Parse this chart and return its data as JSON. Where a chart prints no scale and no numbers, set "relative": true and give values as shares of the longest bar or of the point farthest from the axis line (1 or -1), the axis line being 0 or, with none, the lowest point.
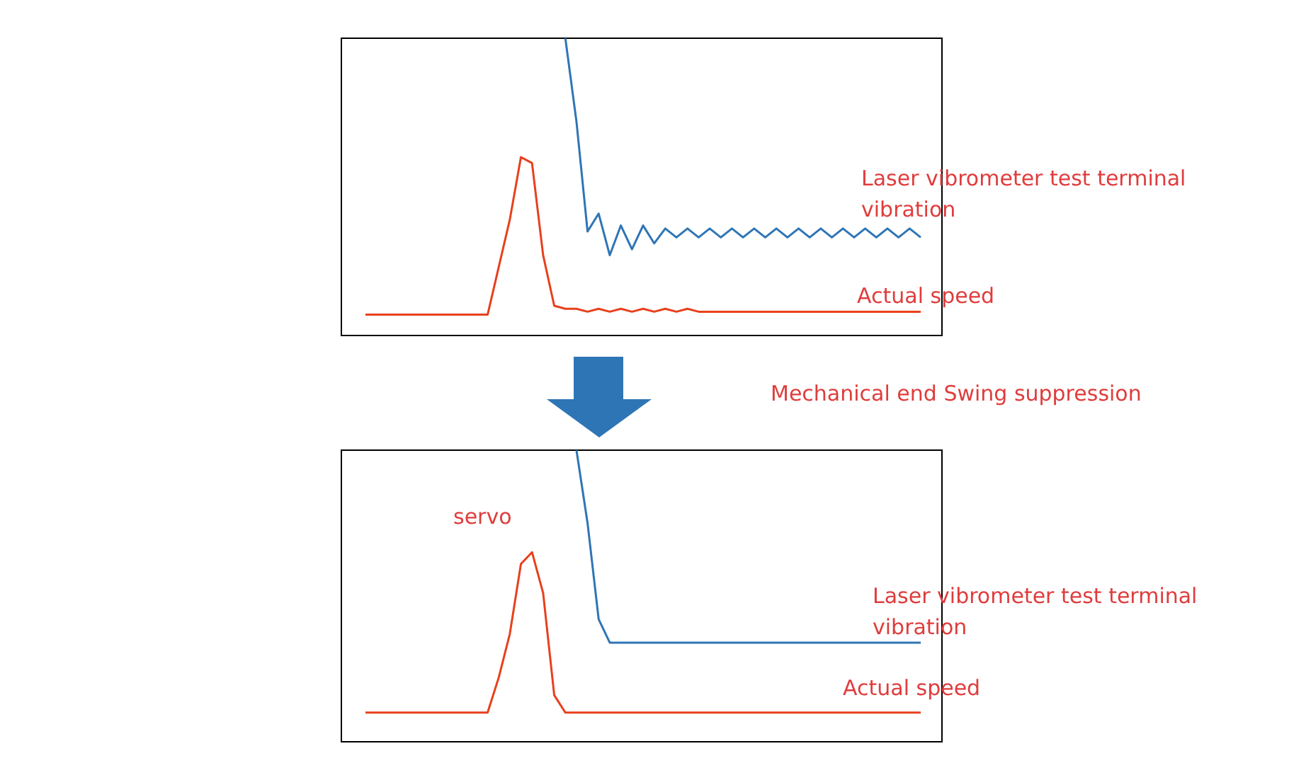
{
  "chart_data": [
    {
      "type": "line",
      "relative": true,
      "categories": [
        null,
        null,
        null,
        null,
        null,
        null,
        null,
        null,
        null,
        null,
        null,
        null,
        null,
        null,
        null,
        null,
        null,
        null,
        null,
        null,
        null,
        null,
        null,
        null,
        null,
        null,
        null,
        null,
        null,
        null,
        null,
        null,
        null,
        null,
        null,
        null,
        null,
        null,
        null,
        null,
        null,
        null,
        null,
        null,
        null,
        null,
        null,
        null,
        null,
        null,
        null
      ],
      "series": [
        {
          "name": "Laser vibrometer test terminal vibration",
          "color": "#2e75b6",
          "values": [
            null,
            null,
            null,
            null,
            null,
            null,
            null,
            null,
            null,
            null,
            null,
            null,
            null,
            null,
            null,
            null,
            null,
            null,
            1,
            0.72,
            0.35,
            0.41,
            0.27,
            0.37,
            0.29,
            0.37,
            0.31,
            0.36,
            0.33,
            0.36,
            0.33,
            0.36,
            0.33,
            0.36,
            0.33,
            0.36,
            0.33,
            0.36,
            0.33,
            0.36,
            0.33,
            0.36,
            0.33,
            0.36,
            0.33,
            0.36,
            0.33,
            0.36,
            0.33,
            0.36,
            0.33
          ]
        },
        {
          "name": "Actual speed",
          "color": "#e8401c",
          "values": [
            0.07,
            0.07,
            0.07,
            0.07,
            0.07,
            0.07,
            0.07,
            0.07,
            0.07,
            0.07,
            0.07,
            0.07,
            0.23,
            0.39,
            0.6,
            0.58,
            0.27,
            0.1,
            0.09,
            0.09,
            0.08,
            0.09,
            0.08,
            0.09,
            0.08,
            0.09,
            0.08,
            0.09,
            0.08,
            0.09,
            0.08,
            0.08,
            0.08,
            0.08,
            0.08,
            0.08,
            0.08,
            0.08,
            0.08,
            0.08,
            0.08,
            0.08,
            0.08,
            0.08,
            0.08,
            0.08,
            0.08,
            0.08,
            0.08,
            0.08,
            0.08
          ]
        }
      ],
      "annotations": [
        "Mechanical end Swing suppression"
      ]
    },
    {
      "type": "line",
      "relative": true,
      "categories": [
        null,
        null,
        null,
        null,
        null,
        null,
        null,
        null,
        null,
        null,
        null,
        null,
        null,
        null,
        null,
        null,
        null,
        null,
        null,
        null,
        null,
        null,
        null,
        null,
        null,
        null,
        null,
        null,
        null,
        null,
        null,
        null,
        null,
        null,
        null,
        null,
        null,
        null,
        null,
        null,
        null,
        null,
        null,
        null,
        null,
        null,
        null,
        null,
        null,
        null,
        null
      ],
      "series": [
        {
          "name": "Laser vibrometer test terminal vibration",
          "color": "#2e75b6",
          "values": [
            null,
            null,
            null,
            null,
            null,
            null,
            null,
            null,
            null,
            null,
            null,
            null,
            null,
            null,
            null,
            null,
            null,
            null,
            null,
            1,
            0.75,
            0.42,
            0.34,
            0.34,
            0.34,
            0.34,
            0.34,
            0.34,
            0.34,
            0.34,
            0.34,
            0.34,
            0.34,
            0.34,
            0.34,
            0.34,
            0.34,
            0.34,
            0.34,
            0.34,
            0.34,
            0.34,
            0.34,
            0.34,
            0.34,
            0.34,
            0.34,
            0.34,
            0.34,
            0.34,
            0.34
          ]
        },
        {
          "name": "Actual speed",
          "color": "#e8401c",
          "values": [
            0.1,
            0.1,
            0.1,
            0.1,
            0.1,
            0.1,
            0.1,
            0.1,
            0.1,
            0.1,
            0.1,
            0.1,
            0.22,
            0.37,
            0.61,
            0.65,
            0.51,
            0.16,
            0.1,
            0.1,
            0.1,
            0.1,
            0.1,
            0.1,
            0.1,
            0.1,
            0.1,
            0.1,
            0.1,
            0.1,
            0.1,
            0.1,
            0.1,
            0.1,
            0.1,
            0.1,
            0.1,
            0.1,
            0.1,
            0.1,
            0.1,
            0.1,
            0.1,
            0.1,
            0.1,
            0.1,
            0.1,
            0.1,
            0.1,
            0.1,
            0.1
          ]
        }
      ],
      "annotations": [
        "servo"
      ]
    }
  ]
}
